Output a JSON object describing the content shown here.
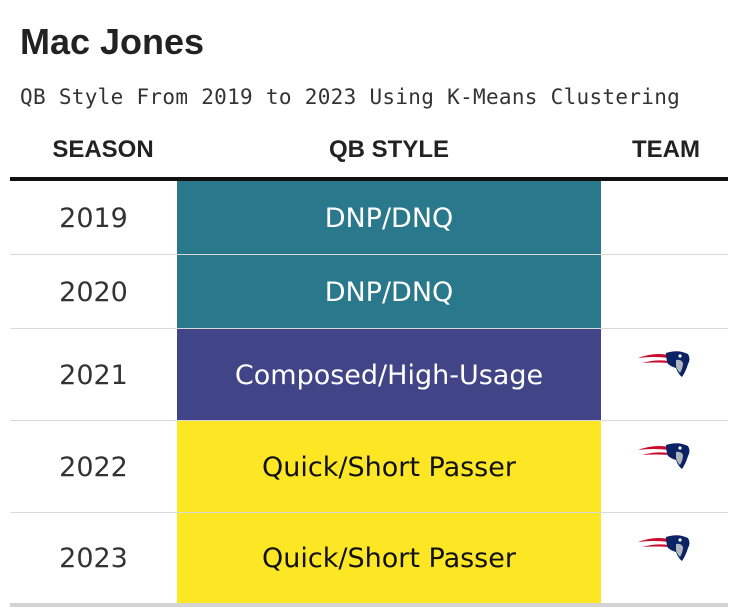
{
  "chart_data": {
    "type": "table",
    "title": "Mac Jones",
    "subtitle": "QB Style From 2019 to 2023 Using K-Means Clustering",
    "columns": [
      "SEASON",
      "QB STYLE",
      "TEAM"
    ],
    "rows": [
      {
        "season": "2019",
        "qb_style": "DNP/DNQ",
        "team_logo": "",
        "style_color": "#2a788c",
        "text_color": "#ffffff"
      },
      {
        "season": "2020",
        "qb_style": "DNP/DNQ",
        "team_logo": "",
        "style_color": "#2a788c",
        "text_color": "#ffffff"
      },
      {
        "season": "2021",
        "qb_style": "Composed/High-Usage",
        "team_logo": "patriots-logo-icon",
        "style_color": "#414487",
        "text_color": "#ffffff"
      },
      {
        "season": "2022",
        "qb_style": "Quick/Short Passer",
        "team_logo": "patriots-logo-icon",
        "style_color": "#fde725",
        "text_color": "#111111"
      },
      {
        "season": "2023",
        "qb_style": "Quick/Short Passer",
        "team_logo": "patriots-logo-icon",
        "style_color": "#fde725",
        "text_color": "#111111"
      }
    ]
  }
}
